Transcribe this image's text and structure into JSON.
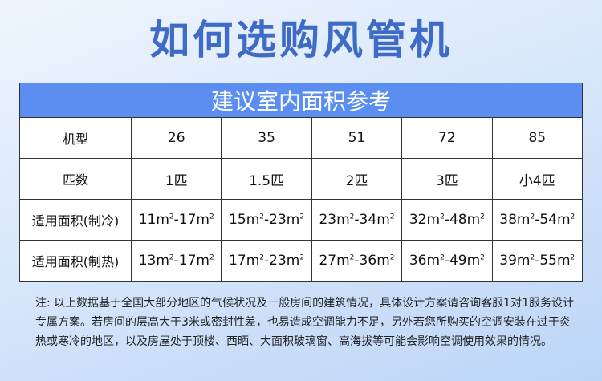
{
  "title": "如何选购风管机",
  "table": {
    "caption": "建议室内面积参考",
    "rows": [
      {
        "label": "机型",
        "cells": [
          "26",
          "35",
          "51",
          "72",
          "85"
        ]
      },
      {
        "label": "匹数",
        "cells": [
          "1匹",
          "1.5匹",
          "2匹",
          "3匹",
          "小4匹"
        ]
      },
      {
        "label": "适用面积(制冷)",
        "cells": [
          [
            "11",
            "17"
          ],
          [
            "15",
            "23"
          ],
          [
            "23",
            "34"
          ],
          [
            "32",
            "48"
          ],
          [
            "38",
            "54"
          ]
        ]
      },
      {
        "label": "适用面积(制热)",
        "cells": [
          [
            "13",
            "17"
          ],
          [
            "17",
            "23"
          ],
          [
            "27",
            "36"
          ],
          [
            "36",
            "49"
          ],
          [
            "39",
            "55"
          ]
        ]
      }
    ],
    "unit": "m",
    "unit_power": "2"
  },
  "note": "注: 以上数据基于全国大部分地区的气候状况及一般房间的建筑情况，具体设计方案请咨询客服1对1服务设计专属方案。若房间的层高大于3米或密封性差，也易造成空调能力不足，另外若您所购买的空调安装在过于炎热或寒冷的地区，以及房屋处于顶楼、西晒、大面积玻璃窗、高海拔等可能会影响空调使用效果的情况。"
}
